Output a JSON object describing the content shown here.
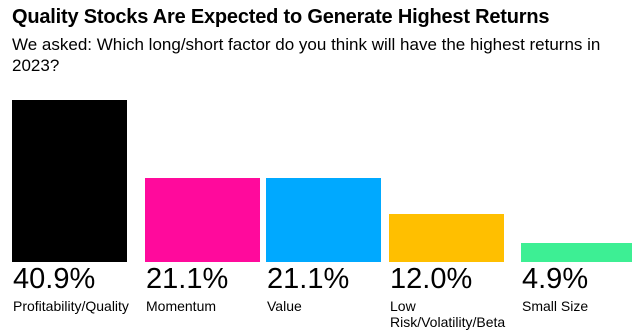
{
  "chart_data": {
    "type": "bar",
    "title": "Quality Stocks Are Expected to Generate Highest Returns",
    "subtitle": "We asked: Which long/short factor do you think will have the highest returns in 2023?",
    "categories": [
      "Profitability/Quality",
      "Momentum",
      "Value",
      "Low Risk/Volatility/Beta",
      "Small Size"
    ],
    "values": [
      40.9,
      21.1,
      21.1,
      12.0,
      4.9
    ],
    "value_labels": [
      "40.9%",
      "21.1%",
      "21.1%",
      "12.0%",
      "4.9%"
    ],
    "colors": [
      "#000000",
      "#ff0a9c",
      "#00a9ff",
      "#ffbf00",
      "#3def94"
    ]
  }
}
